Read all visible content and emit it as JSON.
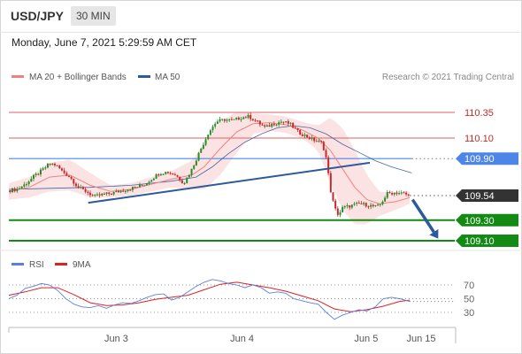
{
  "header": {
    "symbol": "USD/JPY",
    "interval": "30 MIN",
    "datetime": "Monday, June 7, 2021 5:29:59 AM CET"
  },
  "legend": {
    "ma20": "MA 20 + Bollinger Bands",
    "ma50": "MA 50",
    "copyright": "Research © 2021 Trading Central",
    "rsi": "RSI",
    "ma9": "9MA"
  },
  "colors": {
    "ma20": "#f08080",
    "ma50": "#2c5a9c",
    "band": "#fbd9d9",
    "bull": "#2a8a2a",
    "bear": "#c42a2a",
    "resistance": "#e06060",
    "level_blue": "#4d86e8",
    "support": "#138a13",
    "current": "#333333",
    "rsi": "#5b7fe0",
    "rsi_ma": "#e02020",
    "arrow": "#2c5a9c"
  },
  "chart_data": [
    {
      "type": "candlestick",
      "title": "USD/JPY",
      "x_ticks": [
        "Jun 3",
        "Jun 4",
        "Jun 5",
        "Jun 15"
      ],
      "x_range": [
        0,
        100
      ],
      "x_tick_positions": [
        26.4,
        57.3,
        87.8,
        101.3
      ],
      "ylim": [
        109.0,
        110.5
      ],
      "levels": [
        {
          "label": "110.35",
          "value": 110.35,
          "kind": "resistance"
        },
        {
          "label": "110.10",
          "value": 110.1,
          "kind": "resistance"
        },
        {
          "label": "109.90",
          "value": 109.9,
          "kind": "pivot"
        },
        {
          "label": "109.54",
          "value": 109.54,
          "kind": "current"
        },
        {
          "label": "109.30",
          "value": 109.3,
          "kind": "support"
        },
        {
          "label": "109.10",
          "value": 109.1,
          "kind": "support"
        }
      ],
      "price_path": [
        [
          0,
          109.59
        ],
        [
          2,
          109.6
        ],
        [
          4,
          109.65
        ],
        [
          6,
          109.72
        ],
        [
          8,
          109.78
        ],
        [
          10,
          109.85
        ],
        [
          11.5,
          109.84
        ],
        [
          13,
          109.78
        ],
        [
          15,
          109.72
        ],
        [
          17,
          109.62
        ],
        [
          19,
          109.58
        ],
        [
          21,
          109.53
        ],
        [
          23,
          109.55
        ],
        [
          25,
          109.56
        ],
        [
          27,
          109.58
        ],
        [
          29,
          109.6
        ],
        [
          31,
          109.62
        ],
        [
          33,
          109.64
        ],
        [
          35,
          109.7
        ],
        [
          37,
          109.76
        ],
        [
          39,
          109.77
        ],
        [
          41,
          109.74
        ],
        [
          43,
          109.66
        ],
        [
          45,
          109.8
        ],
        [
          47,
          109.98
        ],
        [
          49,
          110.15
        ],
        [
          51,
          110.26
        ],
        [
          53,
          110.28
        ],
        [
          55,
          110.27
        ],
        [
          57,
          110.3
        ],
        [
          59,
          110.31
        ],
        [
          61,
          110.26
        ],
        [
          63,
          110.2
        ],
        [
          65,
          110.24
        ],
        [
          67,
          110.26
        ],
        [
          69,
          110.24
        ],
        [
          71,
          110.16
        ],
        [
          73,
          110.12
        ],
        [
          75,
          110.08
        ],
        [
          77,
          110.05
        ],
        [
          78,
          109.9
        ],
        [
          79,
          109.6
        ],
        [
          80,
          109.42
        ],
        [
          81,
          109.35
        ],
        [
          82,
          109.42
        ],
        [
          84,
          109.44
        ],
        [
          86,
          109.46
        ],
        [
          88,
          109.45
        ],
        [
          90,
          109.43
        ],
        [
          91,
          109.44
        ],
        [
          92,
          109.5
        ],
        [
          93,
          109.56
        ],
        [
          95,
          109.57
        ],
        [
          97,
          109.56
        ],
        [
          98.5,
          109.54
        ]
      ],
      "ma20": [
        [
          0,
          109.58
        ],
        [
          5,
          109.62
        ],
        [
          10,
          109.72
        ],
        [
          15,
          109.74
        ],
        [
          20,
          109.64
        ],
        [
          25,
          109.58
        ],
        [
          30,
          109.6
        ],
        [
          35,
          109.65
        ],
        [
          40,
          109.7
        ],
        [
          45,
          109.74
        ],
        [
          48,
          109.82
        ],
        [
          52,
          110.0
        ],
        [
          56,
          110.16
        ],
        [
          60,
          110.24
        ],
        [
          64,
          110.25
        ],
        [
          68,
          110.23
        ],
        [
          72,
          110.18
        ],
        [
          76,
          110.1
        ],
        [
          79,
          109.98
        ],
        [
          82,
          109.8
        ],
        [
          85,
          109.62
        ],
        [
          88,
          109.5
        ],
        [
          91,
          109.46
        ],
        [
          95,
          109.48
        ],
        [
          98.5,
          109.52
        ]
      ],
      "band_width": [
        [
          0,
          0.08
        ],
        [
          5,
          0.1
        ],
        [
          10,
          0.14
        ],
        [
          15,
          0.15
        ],
        [
          20,
          0.12
        ],
        [
          25,
          0.06
        ],
        [
          30,
          0.06
        ],
        [
          35,
          0.07
        ],
        [
          40,
          0.08
        ],
        [
          45,
          0.14
        ],
        [
          48,
          0.22
        ],
        [
          52,
          0.26
        ],
        [
          56,
          0.2
        ],
        [
          60,
          0.1
        ],
        [
          64,
          0.08
        ],
        [
          68,
          0.08
        ],
        [
          72,
          0.08
        ],
        [
          76,
          0.12
        ],
        [
          79,
          0.32
        ],
        [
          82,
          0.4
        ],
        [
          85,
          0.36
        ],
        [
          88,
          0.24
        ],
        [
          91,
          0.12
        ],
        [
          95,
          0.08
        ],
        [
          98.5,
          0.06
        ]
      ],
      "ma50": [
        [
          0,
          109.6
        ],
        [
          10,
          109.61
        ],
        [
          20,
          109.62
        ],
        [
          30,
          109.64
        ],
        [
          40,
          109.68
        ],
        [
          46,
          109.72
        ],
        [
          50,
          109.82
        ],
        [
          54,
          109.95
        ],
        [
          58,
          110.06
        ],
        [
          62,
          110.14
        ],
        [
          66,
          110.2
        ],
        [
          70,
          110.22
        ],
        [
          74,
          110.2
        ],
        [
          78,
          110.14
        ],
        [
          82,
          110.04
        ],
        [
          86,
          109.96
        ],
        [
          90,
          109.88
        ],
        [
          94,
          109.82
        ],
        [
          99,
          109.76
        ]
      ],
      "trendline": [
        [
          19.5,
          109.47
        ],
        [
          88.7,
          109.86
        ]
      ],
      "forecast_arrow": [
        [
          99.2,
          109.5
        ],
        [
          105.5,
          109.12
        ]
      ]
    },
    {
      "type": "line",
      "title": "RSI",
      "yticks": [
        "70",
        "50",
        "30"
      ],
      "ylim": [
        0,
        100
      ],
      "x_range": [
        0,
        100
      ],
      "series": [
        {
          "name": "RSI",
          "values": [
            [
              0,
              50
            ],
            [
              2,
              55
            ],
            [
              4,
              65
            ],
            [
              6,
              68
            ],
            [
              8,
              72
            ],
            [
              10,
              70
            ],
            [
              12,
              62
            ],
            [
              14,
              50
            ],
            [
              16,
              42
            ],
            [
              18,
              38
            ],
            [
              20,
              37
            ],
            [
              22,
              40
            ],
            [
              24,
              36
            ],
            [
              26,
              41
            ],
            [
              28,
              44
            ],
            [
              30,
              43
            ],
            [
              32,
              47
            ],
            [
              34,
              52
            ],
            [
              36,
              56
            ],
            [
              38,
              57
            ],
            [
              40,
              48
            ],
            [
              42,
              52
            ],
            [
              44,
              60
            ],
            [
              46,
              68
            ],
            [
              48,
              74
            ],
            [
              50,
              78
            ],
            [
              52,
              76
            ],
            [
              54,
              72
            ],
            [
              56,
              70
            ],
            [
              58,
              66
            ],
            [
              60,
              70
            ],
            [
              62,
              66
            ],
            [
              64,
              58
            ],
            [
              66,
              60
            ],
            [
              68,
              58
            ],
            [
              70,
              50
            ],
            [
              72,
              47
            ],
            [
              74,
              44
            ],
            [
              76,
              42
            ],
            [
              78,
              30
            ],
            [
              80,
              20
            ],
            [
              82,
              26
            ],
            [
              84,
              30
            ],
            [
              86,
              34
            ],
            [
              88,
              32
            ],
            [
              90,
              38
            ],
            [
              92,
              50
            ],
            [
              94,
              52
            ],
            [
              96,
              50
            ],
            [
              98.5,
              46
            ]
          ]
        },
        {
          "name": "9MA",
          "values": [
            [
              0,
              55
            ],
            [
              4,
              60
            ],
            [
              8,
              66
            ],
            [
              12,
              66
            ],
            [
              16,
              56
            ],
            [
              20,
              44
            ],
            [
              24,
              40
            ],
            [
              28,
              41
            ],
            [
              32,
              44
            ],
            [
              36,
              49
            ],
            [
              40,
              52
            ],
            [
              44,
              55
            ],
            [
              48,
              63
            ],
            [
              52,
              71
            ],
            [
              56,
              74
            ],
            [
              60,
              70
            ],
            [
              64,
              66
            ],
            [
              68,
              61
            ],
            [
              72,
              54
            ],
            [
              76,
              47
            ],
            [
              80,
              35
            ],
            [
              84,
              31
            ],
            [
              88,
              34
            ],
            [
              92,
              39
            ],
            [
              96,
              46
            ],
            [
              98.5,
              48
            ]
          ]
        }
      ]
    }
  ]
}
